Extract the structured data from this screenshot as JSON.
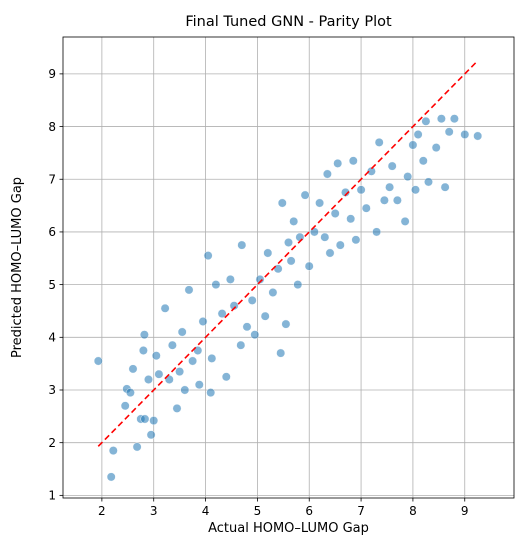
{
  "chart_data": {
    "type": "scatter",
    "title": "Final Tuned GNN - Parity Plot",
    "xlabel": "Actual HOMO–LUMO Gap",
    "ylabel": "Predicted HOMO–LUMO Gap",
    "xlim": [
      1.25,
      9.95
    ],
    "ylim": [
      0.95,
      9.7
    ],
    "xticks": [
      2,
      3,
      4,
      5,
      6,
      7,
      8,
      9
    ],
    "yticks": [
      1,
      2,
      3,
      4,
      5,
      6,
      7,
      8,
      9
    ],
    "grid": true,
    "point_color": "#1f77b4",
    "point_alpha": 0.55,
    "point_edge_color": "#ffffff",
    "parity_line": {
      "x": [
        1.93,
        9.23
      ],
      "y": [
        1.93,
        9.23
      ],
      "color": "#ff0000",
      "style": "dashed"
    },
    "series": [
      {
        "points": [
          [
            1.93,
            3.55
          ],
          [
            2.18,
            1.35
          ],
          [
            2.22,
            1.85
          ],
          [
            2.45,
            2.7
          ],
          [
            2.48,
            3.02
          ],
          [
            2.55,
            2.95
          ],
          [
            2.6,
            3.4
          ],
          [
            2.68,
            1.92
          ],
          [
            2.75,
            2.45
          ],
          [
            2.8,
            3.75
          ],
          [
            2.82,
            4.05
          ],
          [
            2.83,
            2.45
          ],
          [
            2.9,
            3.2
          ],
          [
            2.95,
            2.15
          ],
          [
            3.0,
            2.42
          ],
          [
            3.05,
            3.65
          ],
          [
            3.1,
            3.3
          ],
          [
            3.22,
            4.55
          ],
          [
            3.3,
            3.2
          ],
          [
            3.36,
            3.85
          ],
          [
            3.45,
            2.65
          ],
          [
            3.5,
            3.35
          ],
          [
            3.55,
            4.1
          ],
          [
            3.6,
            3.0
          ],
          [
            3.68,
            4.9
          ],
          [
            3.75,
            3.55
          ],
          [
            3.85,
            3.75
          ],
          [
            3.88,
            3.1
          ],
          [
            3.95,
            4.3
          ],
          [
            4.05,
            5.55
          ],
          [
            4.1,
            2.95
          ],
          [
            4.12,
            3.6
          ],
          [
            4.2,
            5.0
          ],
          [
            4.32,
            4.45
          ],
          [
            4.4,
            3.25
          ],
          [
            4.48,
            5.1
          ],
          [
            4.55,
            4.6
          ],
          [
            4.68,
            3.85
          ],
          [
            4.7,
            5.75
          ],
          [
            4.8,
            4.2
          ],
          [
            4.9,
            4.7
          ],
          [
            4.95,
            4.05
          ],
          [
            5.05,
            5.1
          ],
          [
            5.15,
            4.4
          ],
          [
            5.2,
            5.6
          ],
          [
            5.3,
            4.85
          ],
          [
            5.4,
            5.3
          ],
          [
            5.45,
            3.7
          ],
          [
            5.48,
            6.55
          ],
          [
            5.55,
            4.25
          ],
          [
            5.6,
            5.8
          ],
          [
            5.65,
            5.45
          ],
          [
            5.7,
            6.2
          ],
          [
            5.78,
            5.0
          ],
          [
            5.82,
            5.9
          ],
          [
            5.92,
            6.7
          ],
          [
            6.0,
            5.35
          ],
          [
            6.1,
            6.0
          ],
          [
            6.2,
            6.55
          ],
          [
            6.3,
            5.9
          ],
          [
            6.35,
            7.1
          ],
          [
            6.4,
            5.6
          ],
          [
            6.5,
            6.35
          ],
          [
            6.55,
            7.3
          ],
          [
            6.6,
            5.75
          ],
          [
            6.7,
            6.75
          ],
          [
            6.8,
            6.25
          ],
          [
            6.85,
            7.35
          ],
          [
            6.9,
            5.85
          ],
          [
            7.0,
            6.8
          ],
          [
            7.1,
            6.45
          ],
          [
            7.2,
            7.15
          ],
          [
            7.3,
            6.0
          ],
          [
            7.35,
            7.7
          ],
          [
            7.45,
            6.6
          ],
          [
            7.55,
            6.85
          ],
          [
            7.6,
            7.25
          ],
          [
            7.7,
            6.6
          ],
          [
            7.85,
            6.2
          ],
          [
            7.9,
            7.05
          ],
          [
            8.0,
            7.65
          ],
          [
            8.05,
            6.8
          ],
          [
            8.1,
            7.85
          ],
          [
            8.2,
            7.35
          ],
          [
            8.25,
            8.1
          ],
          [
            8.3,
            6.95
          ],
          [
            8.45,
            7.6
          ],
          [
            8.55,
            8.15
          ],
          [
            8.62,
            6.85
          ],
          [
            8.7,
            7.9
          ],
          [
            8.8,
            8.15
          ],
          [
            9.0,
            7.85
          ],
          [
            9.25,
            7.82
          ]
        ]
      }
    ]
  }
}
